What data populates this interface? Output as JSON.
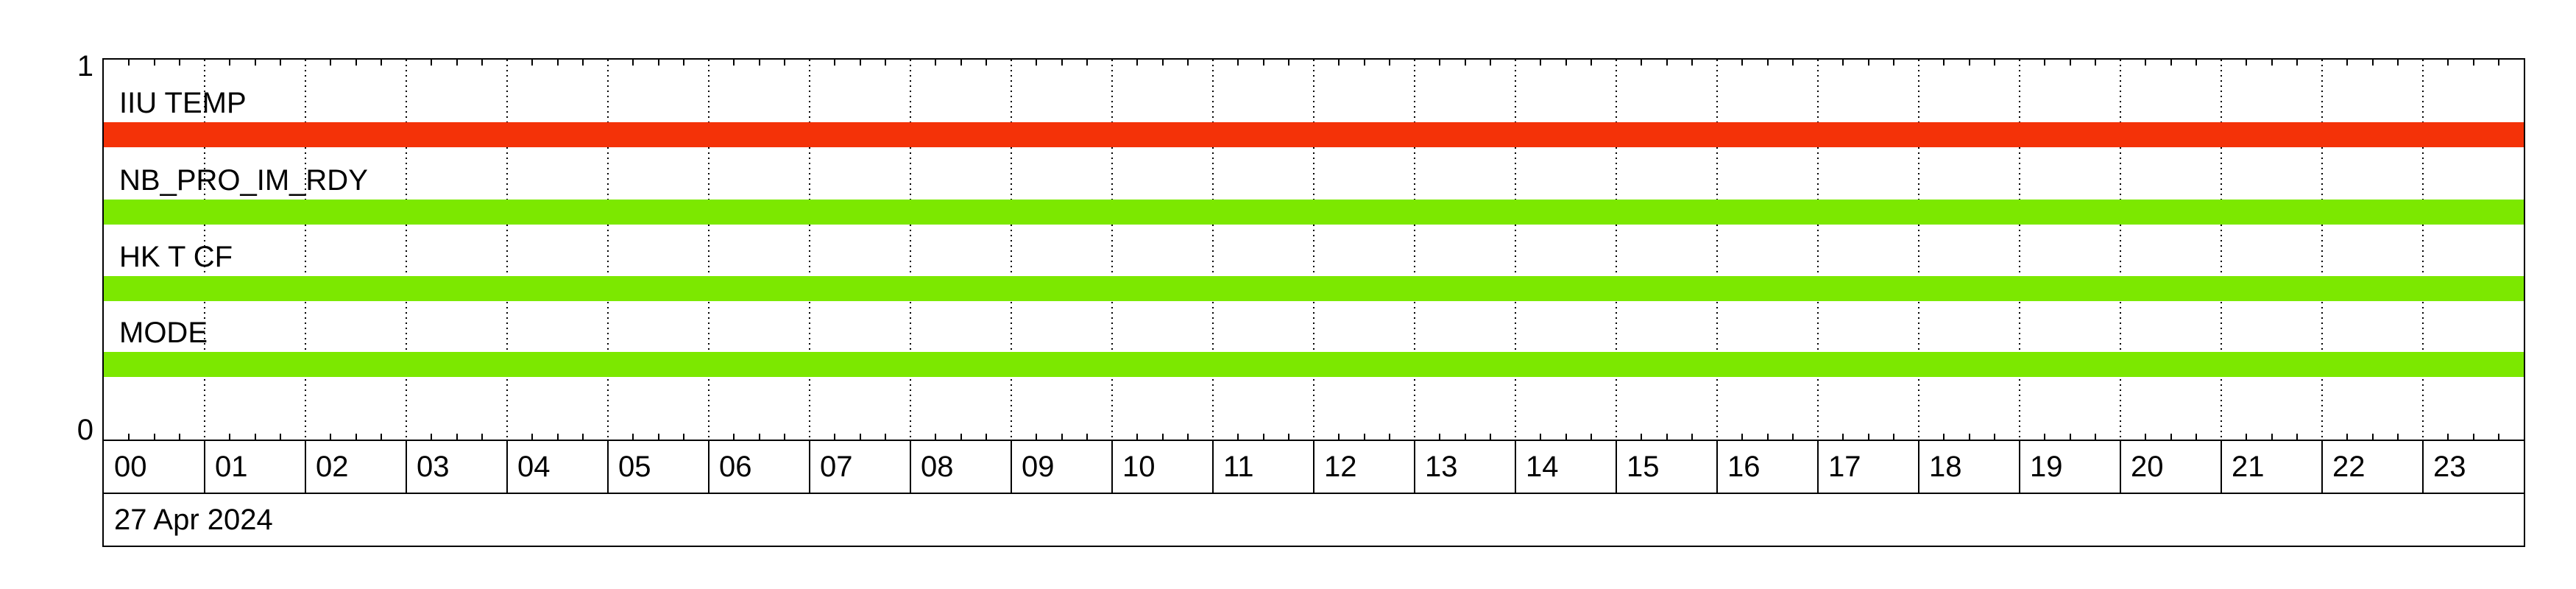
{
  "colors": {
    "background": "#FFFFFF",
    "frame": "#000000",
    "bar_red": "#F43208",
    "bar_green": "#7CE800"
  },
  "chart_data": {
    "type": "bar",
    "subtype": "timeline-status",
    "title": "",
    "date": "27 Apr 2024",
    "x": {
      "start_hour": 0,
      "end_hour": 24,
      "major_gridline_hours": 1,
      "minor_tick_minutes": 15,
      "gridline_style": "dotted",
      "hour_labels": [
        "00",
        "01",
        "02",
        "03",
        "04",
        "05",
        "06",
        "07",
        "08",
        "09",
        "10",
        "11",
        "12",
        "13",
        "14",
        "15",
        "16",
        "17",
        "18",
        "19",
        "20",
        "21",
        "22",
        "23"
      ]
    },
    "y": {
      "range": [
        0,
        1
      ],
      "tick_labels": [
        "0",
        "1"
      ]
    },
    "series": [
      {
        "name": "IIU TEMP",
        "color": "#F43208",
        "segments": [
          {
            "start": "00:00",
            "end": "24:00",
            "value": 1
          }
        ]
      },
      {
        "name": "NB_PRO_IM_RDY",
        "color": "#7CE800",
        "segments": [
          {
            "start": "00:00",
            "end": "24:00",
            "value": 1
          }
        ]
      },
      {
        "name": "HK T CF",
        "color": "#7CE800",
        "segments": [
          {
            "start": "00:00",
            "end": "24:00",
            "value": 1
          }
        ]
      },
      {
        "name": "MODE",
        "color": "#7CE800",
        "segments": [
          {
            "start": "00:00",
            "end": "24:00",
            "value": 1
          }
        ]
      }
    ],
    "legend": "none",
    "grid_on": true
  }
}
